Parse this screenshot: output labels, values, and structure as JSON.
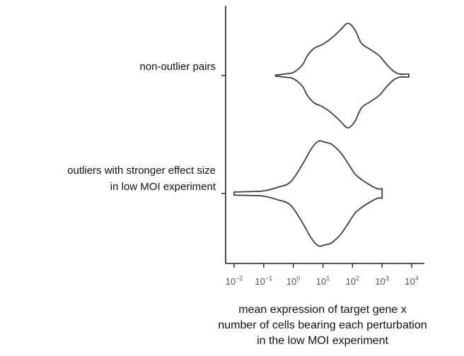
{
  "chart_data": {
    "type": "violin",
    "orientation": "horizontal",
    "x_scale": "log10",
    "xlim": [
      0.01,
      10000
    ],
    "x_ticks": [
      0.01,
      0.1,
      1,
      10,
      100,
      1000,
      10000
    ],
    "x_tick_labels": [
      {
        "base": "10",
        "exp": "−2"
      },
      {
        "base": "10",
        "exp": "−1"
      },
      {
        "base": "10",
        "exp": "0"
      },
      {
        "base": "10",
        "exp": "1"
      },
      {
        "base": "10",
        "exp": "2"
      },
      {
        "base": "10",
        "exp": "3"
      },
      {
        "base": "10",
        "exp": "4"
      }
    ],
    "xlabel": [
      "mean expression of target gene x",
      "number of cells bearing each perturbation",
      "in the low MOI experiment"
    ],
    "ylabel": "",
    "grid": false,
    "categories": [
      {
        "label": [
          "non-outlier pairs"
        ],
        "density": [
          [
            0.25,
            0.01
          ],
          [
            0.5,
            0.03
          ],
          [
            1,
            0.06
          ],
          [
            2,
            0.2
          ],
          [
            3,
            0.38
          ],
          [
            5,
            0.52
          ],
          [
            10,
            0.6
          ],
          [
            20,
            0.72
          ],
          [
            40,
            0.88
          ],
          [
            70,
            1.0
          ],
          [
            120,
            0.88
          ],
          [
            200,
            0.62
          ],
          [
            400,
            0.5
          ],
          [
            800,
            0.38
          ],
          [
            1500,
            0.2
          ],
          [
            2500,
            0.08
          ],
          [
            4000,
            0.03
          ],
          [
            8000,
            0.03
          ]
        ]
      },
      {
        "label": [
          "outliers with stronger effect size",
          "in low MOI experiment"
        ],
        "density": [
          [
            0.01,
            0.03
          ],
          [
            0.05,
            0.04
          ],
          [
            0.1,
            0.05
          ],
          [
            0.3,
            0.12
          ],
          [
            0.8,
            0.22
          ],
          [
            2,
            0.55
          ],
          [
            4,
            0.85
          ],
          [
            7,
            1.0
          ],
          [
            12,
            0.98
          ],
          [
            20,
            0.94
          ],
          [
            40,
            0.78
          ],
          [
            70,
            0.58
          ],
          [
            120,
            0.38
          ],
          [
            200,
            0.27
          ],
          [
            400,
            0.16
          ],
          [
            700,
            0.09
          ],
          [
            1000,
            0.09
          ]
        ]
      }
    ],
    "colors": {
      "line": "#404040",
      "axis": "#222222",
      "tick_label": "#555555",
      "text": "#111111"
    }
  }
}
